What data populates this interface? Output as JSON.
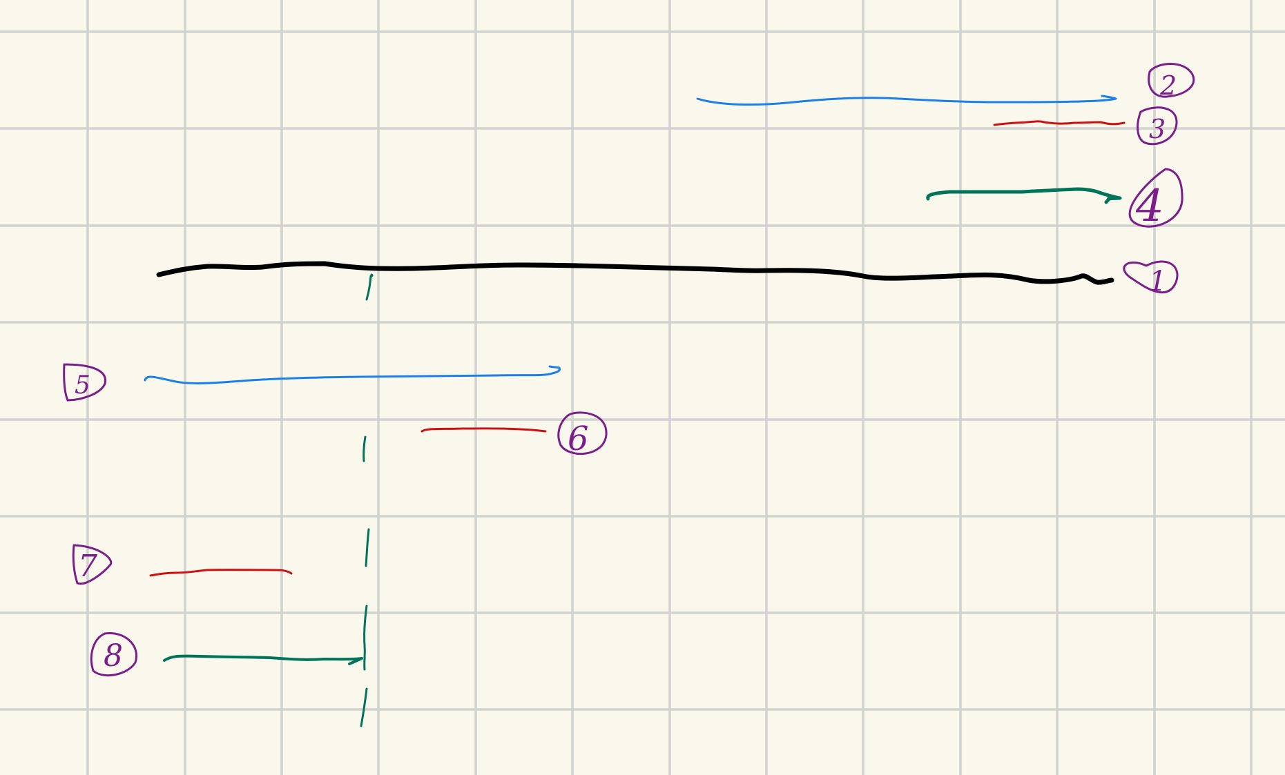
{
  "colors": {
    "paper": "#faf7ec",
    "grid": "#d2d3d0",
    "black": "#000000",
    "blue": "#1a80e8",
    "red": "#cc1111",
    "green": "#00745a",
    "purple": "#7b1e8c"
  },
  "strokes": [
    {
      "name": "stroke-1-black",
      "color": "black",
      "label": "1"
    },
    {
      "name": "stroke-2-blue",
      "color": "blue",
      "label": "2"
    },
    {
      "name": "stroke-3-red",
      "color": "red",
      "label": "3"
    },
    {
      "name": "stroke-4-green",
      "color": "green",
      "label": "4"
    },
    {
      "name": "stroke-5-blue",
      "color": "blue",
      "label": "5"
    },
    {
      "name": "stroke-6-red",
      "color": "red",
      "label": "6"
    },
    {
      "name": "stroke-7-red",
      "color": "red",
      "label": "7"
    },
    {
      "name": "stroke-8-green",
      "color": "green",
      "label": "8"
    }
  ],
  "dashed_line": {
    "color": "green",
    "style": "dashed-vertical"
  }
}
